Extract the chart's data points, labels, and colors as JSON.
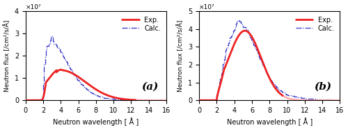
{
  "fig_width": 5.0,
  "fig_height": 1.87,
  "dpi": 100,
  "panels": [
    {
      "label": "(a)",
      "xlim": [
        0,
        16
      ],
      "ylim": [
        0,
        40000000.0
      ],
      "yticks": [
        0,
        10000000.0,
        20000000.0,
        30000000.0,
        40000000.0
      ],
      "ytick_labels": [
        "0",
        "1",
        "2",
        "3",
        "4"
      ],
      "sci_label": "×10⁷",
      "xlabel": "Neutron wavelength [ Å ]",
      "ylabel": "Neutron flux [/cm²/s/Å]",
      "exp_color": "#ee2222",
      "calc_color": "#3333cc",
      "extrap_color": "#ffaaaa",
      "extrap_start": 12.5
    },
    {
      "label": "(b)",
      "xlim": [
        0,
        16
      ],
      "ylim": [
        0,
        50000000.0
      ],
      "yticks": [
        0,
        10000000.0,
        20000000.0,
        30000000.0,
        40000000.0,
        50000000.0
      ],
      "ytick_labels": [
        "0",
        "1",
        "2",
        "3",
        "4",
        "5"
      ],
      "sci_label": "×10⁷",
      "xlabel": "Neutron wavelength [ Å ]",
      "ylabel": "Neutron flux [/cm²/s/Å]",
      "exp_color": "#ee2222",
      "calc_color": "#3333cc",
      "extrap_color": "#ffaaaa",
      "extrap_start": 9.5
    }
  ],
  "legend_exp_label": "Exp.",
  "legend_calc_label": "Calc."
}
